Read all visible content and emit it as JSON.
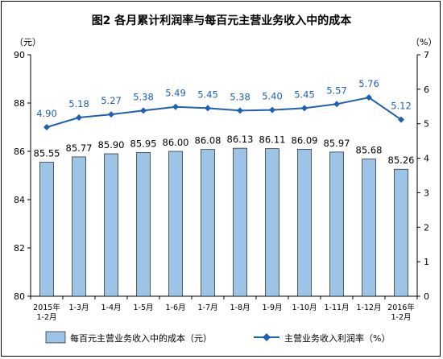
{
  "chart_data": {
    "type": "bar",
    "title": "图2  各月累计利润率与每百元主营业务收入中的成本",
    "left_unit": "（元）",
    "right_unit": "（%）",
    "categories": [
      [
        "2015年",
        "1-2月"
      ],
      [
        "1-3月"
      ],
      [
        "1-4月"
      ],
      [
        "1-5月"
      ],
      [
        "1-6月"
      ],
      [
        "1-7月"
      ],
      [
        "1-8月"
      ],
      [
        "1-9月"
      ],
      [
        "1-10月"
      ],
      [
        "1-11月"
      ],
      [
        "1-12月"
      ],
      [
        "2016年",
        "1-2月"
      ]
    ],
    "series": [
      {
        "name": "每百元主营业务收入中的成本（元）",
        "type": "bar",
        "axis": "left",
        "values": [
          85.55,
          85.77,
          85.9,
          85.95,
          86.0,
          86.08,
          86.13,
          86.11,
          86.09,
          85.97,
          85.68,
          85.26
        ],
        "labels": [
          "85.55",
          "85.77",
          "85.90",
          "85.95",
          "86.00",
          "86.08",
          "86.13",
          "86.11",
          "86.09",
          "85.97",
          "85.68",
          "85.26"
        ],
        "color": "#9dc3e6"
      },
      {
        "name": "主营业务收入利润率（%）",
        "type": "line",
        "axis": "right",
        "values": [
          4.9,
          5.18,
          5.27,
          5.38,
          5.49,
          5.45,
          5.38,
          5.4,
          5.45,
          5.57,
          5.76,
          5.12
        ],
        "labels": [
          "4.90",
          "5.18",
          "5.27",
          "5.38",
          "5.49",
          "5.45",
          "5.38",
          "5.40",
          "5.45",
          "5.57",
          "5.76",
          "5.12"
        ],
        "color": "#1f5fb4"
      }
    ],
    "left_axis": {
      "min": 80,
      "max": 90,
      "ticks": [
        80,
        82,
        84,
        86,
        88,
        90
      ]
    },
    "right_axis": {
      "min": 0,
      "max": 7,
      "ticks": [
        0,
        1,
        2,
        3,
        4,
        5,
        6,
        7
      ]
    },
    "grid": false,
    "legend_position": "bottom"
  }
}
